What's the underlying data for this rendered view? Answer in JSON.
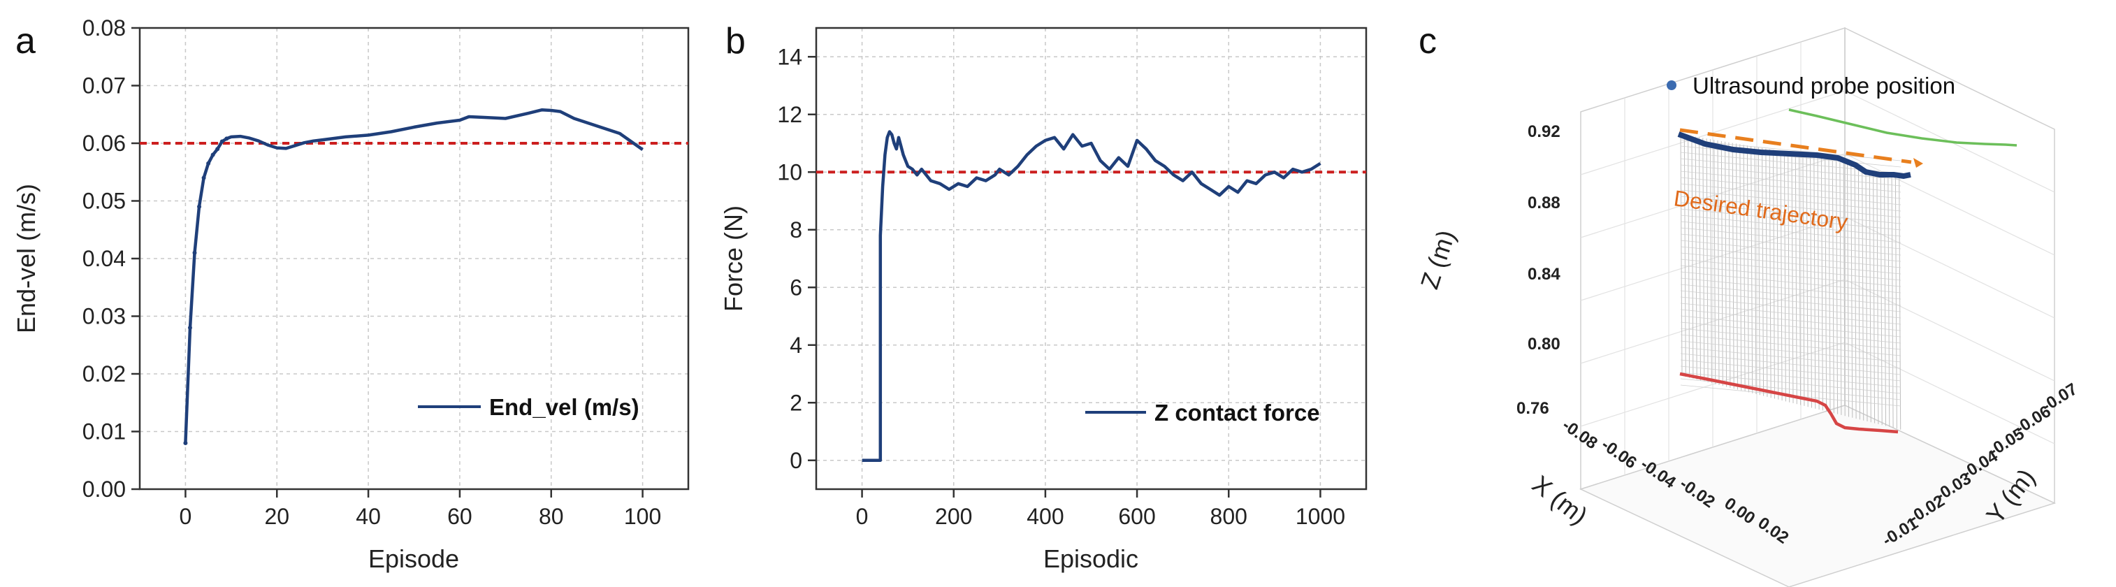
{
  "panels": {
    "a": "a",
    "b": "b",
    "c": "c"
  },
  "chart_data": [
    {
      "type": "line",
      "panel": "a",
      "xlabel": "Episode",
      "ylabel": "End-vel (m/s)",
      "xlim": [
        -10,
        110
      ],
      "ylim": [
        0.0,
        0.08
      ],
      "xticks": [
        0,
        20,
        40,
        60,
        80,
        100
      ],
      "yticks": [
        0.0,
        0.01,
        0.02,
        0.03,
        0.04,
        0.05,
        0.06,
        0.07,
        0.08
      ],
      "xtick_labels": [
        "0",
        "20",
        "40",
        "60",
        "80",
        "100"
      ],
      "ytick_labels": [
        "0.00",
        "0.01",
        "0.02",
        "0.03",
        "0.04",
        "0.05",
        "0.06",
        "0.07",
        "0.08"
      ],
      "grid": true,
      "legend_position": "bottom-right",
      "reference_line": {
        "y": 0.06,
        "color": "#cc1f1f",
        "style": "dashed"
      },
      "series": [
        {
          "name": "End_vel (m/s)",
          "color": "#1f3f7a",
          "x": [
            0,
            1,
            2,
            3,
            4,
            5,
            6,
            7,
            8,
            9,
            10,
            12,
            14,
            16,
            18,
            20,
            22,
            24,
            26,
            28,
            30,
            35,
            40,
            45,
            50,
            55,
            60,
            62,
            65,
            70,
            75,
            78,
            80,
            82,
            85,
            90,
            95,
            100
          ],
          "y": [
            0.008,
            0.028,
            0.041,
            0.049,
            0.054,
            0.0565,
            0.058,
            0.059,
            0.0603,
            0.0608,
            0.0611,
            0.0612,
            0.0609,
            0.0604,
            0.0597,
            0.0592,
            0.0591,
            0.0596,
            0.0601,
            0.0604,
            0.0606,
            0.0611,
            0.0614,
            0.062,
            0.0628,
            0.0635,
            0.064,
            0.0646,
            0.0645,
            0.0643,
            0.0652,
            0.0658,
            0.0657,
            0.0655,
            0.0643,
            0.063,
            0.0617,
            0.0589
          ]
        }
      ]
    },
    {
      "type": "line",
      "panel": "b",
      "xlabel": "Episodic",
      "ylabel": "Force (N)",
      "xlim": [
        -100,
        1100
      ],
      "ylim": [
        -1,
        15
      ],
      "xticks": [
        0,
        200,
        400,
        600,
        800,
        1000
      ],
      "yticks": [
        0,
        2,
        4,
        6,
        8,
        10,
        12,
        14
      ],
      "xtick_labels": [
        "0",
        "200",
        "400",
        "600",
        "800",
        "1000"
      ],
      "ytick_labels": [
        "0",
        "2",
        "4",
        "6",
        "8",
        "10",
        "12",
        "14"
      ],
      "grid": true,
      "legend_position": "bottom-right",
      "reference_line": {
        "y": 10,
        "color": "#cc1f1f",
        "style": "dashed"
      },
      "series": [
        {
          "name": "Z contact force",
          "color": "#1f3f7a",
          "x": [
            0,
            40,
            40,
            45,
            50,
            55,
            60,
            65,
            70,
            75,
            80,
            85,
            90,
            95,
            100,
            110,
            120,
            130,
            150,
            170,
            190,
            210,
            230,
            250,
            270,
            290,
            300,
            320,
            340,
            360,
            380,
            400,
            420,
            440,
            460,
            480,
            500,
            520,
            540,
            560,
            580,
            600,
            620,
            640,
            660,
            680,
            700,
            720,
            740,
            760,
            780,
            800,
            820,
            840,
            860,
            880,
            900,
            920,
            940,
            960,
            980,
            1000
          ],
          "y": [
            0,
            0,
            7.8,
            9.5,
            10.6,
            11.2,
            11.4,
            11.3,
            11.0,
            10.8,
            11.2,
            10.9,
            10.6,
            10.4,
            10.2,
            10.1,
            9.9,
            10.1,
            9.7,
            9.6,
            9.4,
            9.6,
            9.5,
            9.8,
            9.7,
            9.9,
            10.1,
            9.9,
            10.2,
            10.6,
            10.9,
            11.1,
            11.2,
            10.8,
            11.3,
            10.9,
            11.0,
            10.4,
            10.1,
            10.5,
            10.2,
            11.1,
            10.8,
            10.4,
            10.2,
            9.9,
            9.7,
            10.0,
            9.6,
            9.4,
            9.2,
            9.5,
            9.3,
            9.7,
            9.6,
            9.9,
            10.0,
            9.8,
            10.1,
            10.0,
            10.1,
            10.3
          ]
        }
      ]
    },
    {
      "type": "scatter",
      "panel": "c",
      "xlabel": "X (m)",
      "ylabel": "Y (m)",
      "zlabel": "Z (m)",
      "xticks": [
        "-0.08",
        "-0.06",
        "-0.04",
        "-0.02",
        "0.00",
        "0.02"
      ],
      "yticks": [
        "-0.07",
        "-0.06",
        "-0.05",
        "-0.04",
        "-0.03",
        "-0.02",
        "-0.01"
      ],
      "zticks": [
        "0.92",
        "0.88",
        "0.84",
        "0.80",
        "0.76"
      ],
      "legend_position": "top",
      "annotation": "Desired trajectory",
      "series": [
        {
          "name": "Ultrasound probe position",
          "color": "#1f3f7a"
        }
      ]
    }
  ]
}
